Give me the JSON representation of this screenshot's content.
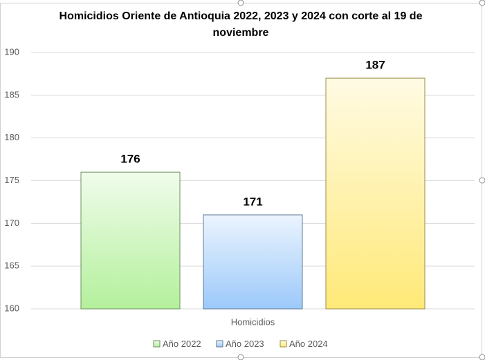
{
  "chart_data": {
    "type": "bar",
    "title": "Homicidios Oriente de Antioquia 2022, 2023 y 2024 con corte al 19 de noviembre",
    "categories": [
      "Homicidios"
    ],
    "series": [
      {
        "name": "Año 2022",
        "color": "#b4f09c",
        "values": [
          176
        ]
      },
      {
        "name": "Año 2023",
        "color": "#9cc9fa",
        "values": [
          171
        ]
      },
      {
        "name": "Año 2024",
        "color": "#ffe978",
        "values": [
          187
        ]
      }
    ],
    "ylim": [
      160,
      190
    ],
    "yticks": [
      160,
      165,
      170,
      175,
      180,
      185,
      190
    ],
    "grid": true,
    "legend": "bottom"
  }
}
